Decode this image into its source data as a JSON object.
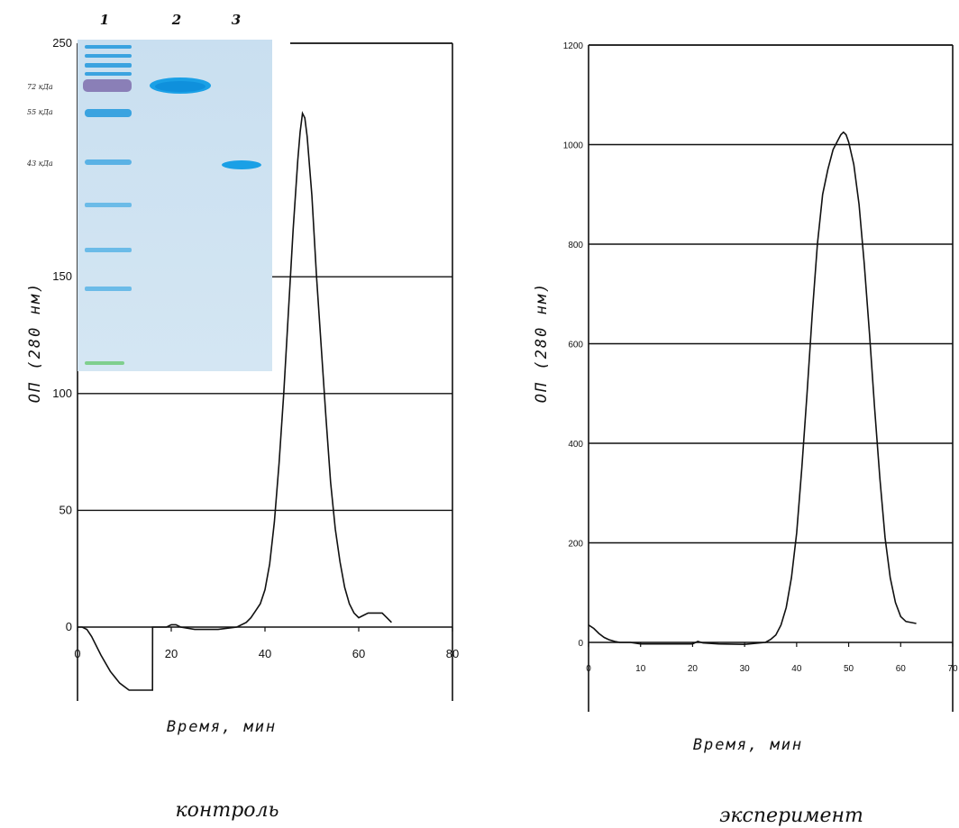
{
  "chart_data": [
    {
      "type": "line",
      "xlabel": "Время, мин",
      "ylabel": "ОП (280 нм)",
      "caption": "контроль",
      "xlim": [
        0,
        80
      ],
      "ylim": [
        -27,
        250
      ],
      "xticks": [
        "0",
        "20",
        "40",
        "60",
        "80"
      ],
      "yticks": [
        "0",
        "50",
        "100",
        "150",
        "250"
      ],
      "grid": true,
      "series": [
        {
          "x": [
            0,
            1,
            2,
            3,
            5,
            7,
            9,
            11,
            13,
            15,
            16,
            16.01,
            17,
            19,
            20,
            21,
            22,
            25,
            30,
            34,
            36,
            37,
            38,
            39,
            40,
            41,
            42,
            43,
            44,
            45,
            46,
            47,
            47.5,
            48,
            48.5,
            49,
            50,
            51,
            52,
            53,
            54,
            55,
            56,
            57,
            58,
            59,
            60,
            61,
            62,
            63,
            64,
            65,
            66,
            67
          ],
          "y": [
            0,
            0,
            -1,
            -4,
            -12,
            -19,
            -24,
            -27,
            -27,
            -27,
            -27,
            0,
            0,
            0,
            1,
            1,
            0,
            -1,
            -1,
            0,
            2,
            4,
            7,
            10,
            16,
            27,
            45,
            70,
            100,
            135,
            170,
            200,
            212,
            220,
            218,
            210,
            185,
            150,
            120,
            90,
            62,
            42,
            28,
            17,
            10,
            6,
            4,
            5,
            6,
            6,
            6,
            6,
            4,
            2
          ]
        }
      ]
    },
    {
      "type": "line",
      "xlabel": "Время, мин",
      "ylabel": "ОП (280 нм)",
      "caption": "эксперимент",
      "xlim": [
        0,
        70
      ],
      "ylim": [
        -140,
        1200
      ],
      "xticks": [
        "0",
        "10",
        "20",
        "30",
        "40",
        "50",
        "60",
        "70"
      ],
      "yticks": [
        "0",
        "200",
        "400",
        "600",
        "800",
        "1000",
        "1200"
      ],
      "grid": true,
      "series": [
        {
          "x": [
            0,
            1,
            2,
            3,
            4,
            5,
            6,
            8,
            10,
            15,
            20,
            21,
            22,
            25,
            30,
            34,
            35,
            36,
            37,
            38,
            39,
            40,
            41,
            42,
            43,
            44,
            45,
            46,
            47,
            48,
            48.5,
            49,
            49.5,
            50,
            51,
            52,
            53,
            54,
            55,
            56,
            57,
            58,
            59,
            60,
            61,
            62,
            63
          ],
          "y": [
            35,
            28,
            18,
            10,
            5,
            2,
            0,
            0,
            -3,
            -3,
            -3,
            2,
            -1,
            -3,
            -4,
            0,
            6,
            15,
            35,
            70,
            130,
            220,
            350,
            500,
            660,
            800,
            900,
            950,
            990,
            1010,
            1020,
            1025,
            1020,
            1005,
            960,
            880,
            760,
            620,
            470,
            330,
            210,
            130,
            80,
            52,
            42,
            40,
            38
          ]
        }
      ]
    }
  ],
  "gel": {
    "lanes": [
      "1",
      "2",
      "3"
    ],
    "markers": [
      "72 кДа",
      "55 кДа",
      "43 кДа"
    ]
  }
}
